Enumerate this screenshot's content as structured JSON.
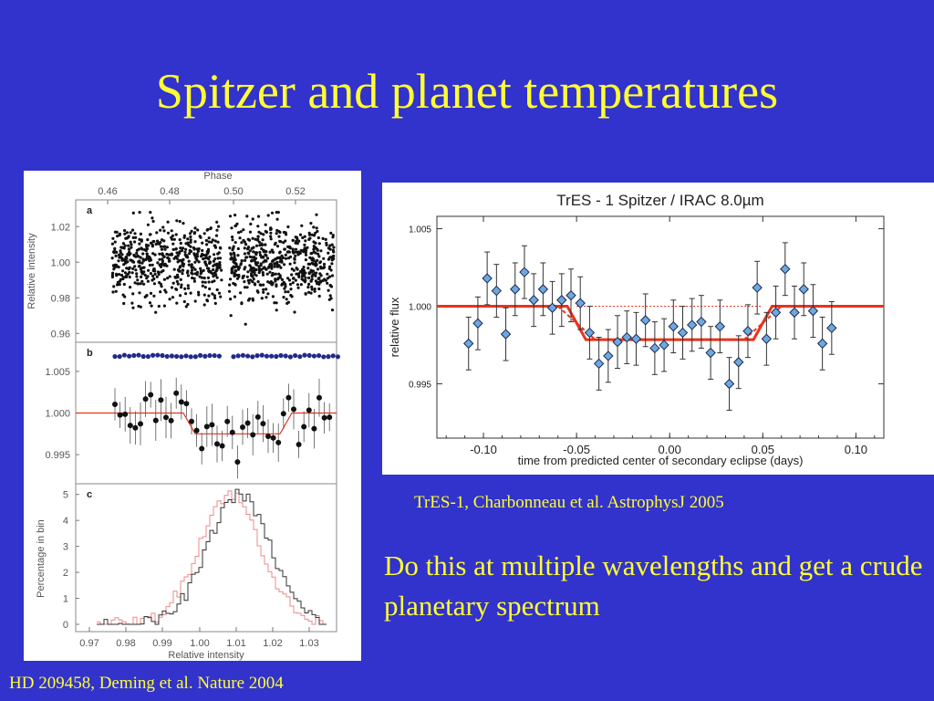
{
  "title": "Spitzer and planet temperatures",
  "caption_right": "TrES-1, Charbonneau et al. AstrophysJ 2005",
  "caption_left": "HD 209458, Deming et al. Nature 2004",
  "body_text": "Do this at multiple wavelengths and get a crude planetary spectrum",
  "colors": {
    "background": "#3232cc",
    "text": "#ffff33",
    "fit_line": "#e8331a",
    "marker_fill": "#6fa8dc",
    "blue_dots": "#1f2a8a"
  },
  "chart_data": [
    {
      "id": "tres1",
      "type": "scatter",
      "title": "TrES - 1  Spitzer / IRAC 8.0µm",
      "xlabel": "time from predicted center of secondary eclipse (days)",
      "ylabel": "relative flux",
      "xlim": [
        -0.125,
        0.115
      ],
      "ylim": [
        0.9915,
        1.0058
      ],
      "xticks": [
        -0.1,
        -0.05,
        0.0,
        0.05,
        0.1
      ],
      "xtick_labels": [
        "-0.10",
        "-0.05",
        "0.00",
        "0.05",
        "0.10"
      ],
      "yticks": [
        0.995,
        1.0,
        1.005
      ],
      "ytick_labels": [
        "0.995",
        "1.000",
        "1.005"
      ],
      "points": [
        {
          "x": -0.108,
          "y": 0.9976,
          "err": 0.0017
        },
        {
          "x": -0.103,
          "y": 0.9989,
          "err": 0.0017
        },
        {
          "x": -0.098,
          "y": 1.0018,
          "err": 0.0017
        },
        {
          "x": -0.093,
          "y": 1.001,
          "err": 0.0017
        },
        {
          "x": -0.088,
          "y": 0.9982,
          "err": 0.0017
        },
        {
          "x": -0.083,
          "y": 1.0011,
          "err": 0.0017
        },
        {
          "x": -0.078,
          "y": 1.0022,
          "err": 0.0017
        },
        {
          "x": -0.073,
          "y": 1.0004,
          "err": 0.0017
        },
        {
          "x": -0.068,
          "y": 1.0011,
          "err": 0.0017
        },
        {
          "x": -0.063,
          "y": 0.9999,
          "err": 0.0017
        },
        {
          "x": -0.058,
          "y": 1.0004,
          "err": 0.0017
        },
        {
          "x": -0.053,
          "y": 1.0007,
          "err": 0.0017
        },
        {
          "x": -0.048,
          "y": 1.0002,
          "err": 0.0017
        },
        {
          "x": -0.043,
          "y": 0.9983,
          "err": 0.0017
        },
        {
          "x": -0.038,
          "y": 0.9963,
          "err": 0.0017
        },
        {
          "x": -0.033,
          "y": 0.9968,
          "err": 0.0017
        },
        {
          "x": -0.028,
          "y": 0.9977,
          "err": 0.0017
        },
        {
          "x": -0.023,
          "y": 0.998,
          "err": 0.0017
        },
        {
          "x": -0.018,
          "y": 0.9979,
          "err": 0.0017
        },
        {
          "x": -0.013,
          "y": 0.9991,
          "err": 0.0017
        },
        {
          "x": -0.008,
          "y": 0.9973,
          "err": 0.0017
        },
        {
          "x": -0.003,
          "y": 0.9975,
          "err": 0.0017
        },
        {
          "x": 0.002,
          "y": 0.9987,
          "err": 0.0017
        },
        {
          "x": 0.007,
          "y": 0.9983,
          "err": 0.0017
        },
        {
          "x": 0.012,
          "y": 0.9988,
          "err": 0.0017
        },
        {
          "x": 0.017,
          "y": 0.999,
          "err": 0.0017
        },
        {
          "x": 0.022,
          "y": 0.997,
          "err": 0.0017
        },
        {
          "x": 0.027,
          "y": 0.9987,
          "err": 0.0017
        },
        {
          "x": 0.032,
          "y": 0.995,
          "err": 0.0017
        },
        {
          "x": 0.037,
          "y": 0.9964,
          "err": 0.0017
        },
        {
          "x": 0.042,
          "y": 0.9984,
          "err": 0.0017
        },
        {
          "x": 0.047,
          "y": 1.0012,
          "err": 0.0017
        },
        {
          "x": 0.052,
          "y": 0.9979,
          "err": 0.0017
        },
        {
          "x": 0.057,
          "y": 0.9996,
          "err": 0.0017
        },
        {
          "x": 0.062,
          "y": 1.0024,
          "err": 0.0017
        },
        {
          "x": 0.067,
          "y": 0.9996,
          "err": 0.0017
        },
        {
          "x": 0.072,
          "y": 1.0011,
          "err": 0.0017
        },
        {
          "x": 0.077,
          "y": 0.9997,
          "err": 0.0017
        },
        {
          "x": 0.082,
          "y": 0.9976,
          "err": 0.0017
        },
        {
          "x": 0.087,
          "y": 0.9986,
          "err": 0.0017
        }
      ],
      "model": {
        "x": [
          -0.125,
          -0.055,
          -0.045,
          0.045,
          0.055,
          0.115
        ],
        "y": [
          1.0,
          1.0,
          0.99785,
          0.99785,
          1.0,
          1.0
        ]
      }
    },
    {
      "id": "hd209458",
      "type": "scatter",
      "top_axis_label": "Phase",
      "top_ticks": [
        "0.46",
        "0.48",
        "0.50",
        "0.52"
      ],
      "ylabel_top": "Relative intensity",
      "panels": [
        {
          "label": "a",
          "yticks": [
            "1.02",
            "1.00",
            "0.98",
            "0.96"
          ],
          "ylim": [
            0.955,
            1.035
          ],
          "noise_center": 1.0,
          "noise_sd": 0.011,
          "n_points": 1100
        },
        {
          "label": "b",
          "yticks": [
            "1.005",
            "1.000",
            "0.995"
          ],
          "ylim": [
            0.9915,
            1.0085
          ],
          "eclipse_depth": 0.0025
        },
        {
          "label": "c",
          "ylabel": "Percentage in bin",
          "yticks": [
            "5",
            "4",
            "3",
            "2",
            "1",
            "0"
          ],
          "xticks": [
            "0.97",
            "0.98",
            "0.99",
            "1.00",
            "1.01",
            "1.02",
            "1.03"
          ],
          "xlabel": "Relative intensity"
        }
      ]
    }
  ]
}
